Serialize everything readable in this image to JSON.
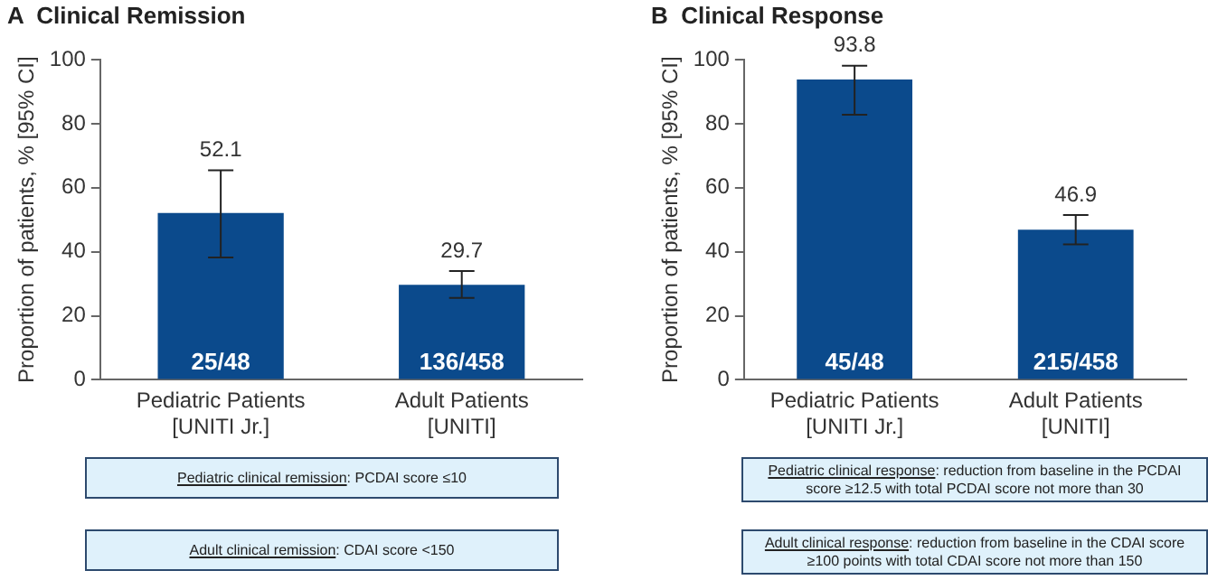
{
  "chart_data": [
    {
      "type": "bar",
      "title": "A  Clinical Remission",
      "ylabel": "Proportion of patients, % [95% CI]",
      "categories": [
        "Pediatric Patients\n[UNITI Jr.]",
        "Adult Patients\n[UNITI]"
      ],
      "values": [
        52.1,
        29.7
      ],
      "errors": [
        [
          38.2,
          65.4
        ],
        [
          25.6,
          34.0
        ]
      ],
      "color": "#0b4a8c",
      "ylim": [
        0,
        100
      ],
      "yticks": [
        0,
        20,
        40,
        60,
        80,
        100
      ],
      "grid": false,
      "legend": false,
      "data_labels": true,
      "annotations": [
        {
          "text": "25/48",
          "x": "Pediatric Patients\n[UNITI Jr.]",
          "y": 0
        },
        {
          "text": "136/458",
          "x": "Adult Patients\n[UNITI]",
          "y": 0
        },
        "Pediatric clinical remission: PCDAI score ≤10",
        "Adult clinical remission: CDAI score <150"
      ]
    },
    {
      "type": "bar",
      "title": "B  Clinical Response",
      "ylabel": "Proportion of patients, % [95% CI]",
      "categories": [
        "Pediatric Patients\n[UNITI Jr.]",
        "Adult Patients\n[UNITI]"
      ],
      "values": [
        93.8,
        46.9
      ],
      "errors": [
        [
          82.8,
          98.1
        ],
        [
          42.3,
          51.5
        ]
      ],
      "color": "#0b4a8c",
      "ylim": [
        0,
        100
      ],
      "yticks": [
        0,
        20,
        40,
        60,
        80,
        100
      ],
      "grid": false,
      "legend": false,
      "data_labels": true,
      "annotations": [
        {
          "text": "45/48",
          "x": "Pediatric Patients\n[UNITI Jr.]",
          "y": 0
        },
        {
          "text": "215/458",
          "x": "Adult Patients\n[UNITI]",
          "y": 0
        },
        "Pediatric clinical response: reduction from baseline in the PCDAI score ≥12.5 with total PCDAI score not more than 30",
        "Adult clinical response: reduction from baseline in the CDAI score ≥100 points with total CDAI score not more than 150"
      ]
    }
  ]
}
